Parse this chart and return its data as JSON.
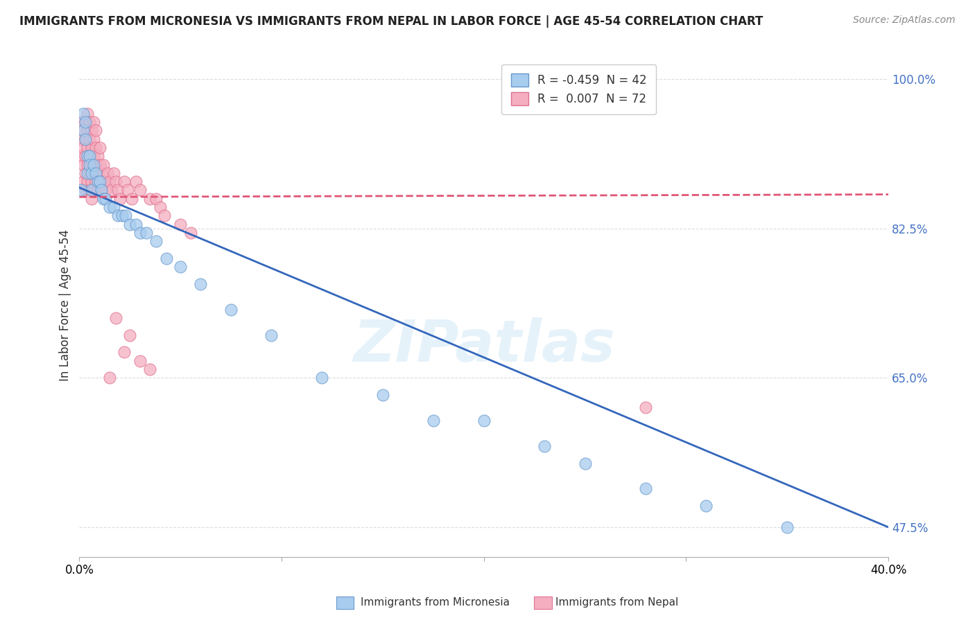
{
  "title": "IMMIGRANTS FROM MICRONESIA VS IMMIGRANTS FROM NEPAL IN LABOR FORCE | AGE 45-54 CORRELATION CHART",
  "source": "Source: ZipAtlas.com",
  "ylabel": "In Labor Force | Age 45-54",
  "xlim": [
    0.0,
    0.4
  ],
  "ylim": [
    0.44,
    1.03
  ],
  "micronesia_color": "#a8ccee",
  "nepal_color": "#f4aec0",
  "micronesia_edge": "#6699cc",
  "nepal_edge": "#e07090",
  "trend_micronesia_color": "#3366bb",
  "trend_nepal_color": "#e05575",
  "R_micronesia": -0.459,
  "N_micronesia": 42,
  "R_nepal": 0.007,
  "N_nepal": 72,
  "legend_label_micronesia": "Immigrants from Micronesia",
  "legend_label_nepal": "Immigrants from Nepal",
  "background_color": "#ffffff",
  "grid_color": "#cccccc",
  "watermark": "ZIPatlas",
  "micronesia_x": [
    0.001,
    0.002,
    0.002,
    0.003,
    0.003,
    0.004,
    0.004,
    0.005,
    0.005,
    0.006,
    0.006,
    0.007,
    0.008,
    0.009,
    0.01,
    0.011,
    0.012,
    0.013,
    0.015,
    0.017,
    0.019,
    0.021,
    0.023,
    0.025,
    0.028,
    0.03,
    0.033,
    0.038,
    0.043,
    0.05,
    0.06,
    0.075,
    0.095,
    0.12,
    0.15,
    0.175,
    0.2,
    0.23,
    0.25,
    0.28,
    0.31,
    0.35
  ],
  "micronesia_y": [
    0.87,
    0.96,
    0.94,
    0.95,
    0.93,
    0.91,
    0.89,
    0.91,
    0.9,
    0.89,
    0.87,
    0.9,
    0.89,
    0.88,
    0.88,
    0.87,
    0.86,
    0.86,
    0.85,
    0.85,
    0.84,
    0.84,
    0.84,
    0.83,
    0.83,
    0.82,
    0.82,
    0.81,
    0.79,
    0.78,
    0.76,
    0.73,
    0.7,
    0.65,
    0.63,
    0.6,
    0.6,
    0.57,
    0.55,
    0.52,
    0.5,
    0.475
  ],
  "nepal_x": [
    0.001,
    0.001,
    0.001,
    0.002,
    0.002,
    0.002,
    0.002,
    0.003,
    0.003,
    0.003,
    0.003,
    0.003,
    0.004,
    0.004,
    0.004,
    0.004,
    0.004,
    0.005,
    0.005,
    0.005,
    0.005,
    0.005,
    0.006,
    0.006,
    0.006,
    0.006,
    0.006,
    0.007,
    0.007,
    0.007,
    0.007,
    0.007,
    0.008,
    0.008,
    0.008,
    0.008,
    0.009,
    0.009,
    0.009,
    0.01,
    0.01,
    0.01,
    0.011,
    0.011,
    0.012,
    0.012,
    0.013,
    0.014,
    0.015,
    0.016,
    0.017,
    0.018,
    0.019,
    0.02,
    0.022,
    0.024,
    0.026,
    0.028,
    0.03,
    0.035,
    0.015,
    0.018,
    0.022,
    0.025,
    0.03,
    0.035,
    0.038,
    0.04,
    0.042,
    0.28,
    0.05,
    0.055
  ],
  "nepal_y": [
    0.91,
    0.93,
    0.95,
    0.88,
    0.9,
    0.92,
    0.94,
    0.87,
    0.89,
    0.91,
    0.93,
    0.95,
    0.88,
    0.9,
    0.92,
    0.94,
    0.96,
    0.87,
    0.89,
    0.91,
    0.93,
    0.95,
    0.88,
    0.9,
    0.92,
    0.94,
    0.86,
    0.89,
    0.91,
    0.93,
    0.95,
    0.87,
    0.88,
    0.9,
    0.92,
    0.94,
    0.87,
    0.89,
    0.91,
    0.88,
    0.9,
    0.92,
    0.87,
    0.89,
    0.88,
    0.9,
    0.87,
    0.89,
    0.88,
    0.87,
    0.89,
    0.88,
    0.87,
    0.86,
    0.88,
    0.87,
    0.86,
    0.88,
    0.87,
    0.86,
    0.65,
    0.72,
    0.68,
    0.7,
    0.67,
    0.66,
    0.86,
    0.85,
    0.84,
    0.615,
    0.83,
    0.82
  ],
  "micro_trend_x0": 0.0,
  "micro_trend_y0": 0.873,
  "micro_trend_x1": 0.4,
  "micro_trend_y1": 0.475,
  "nepal_trend_x0": 0.0,
  "nepal_trend_y0": 0.862,
  "nepal_trend_x1": 0.4,
  "nepal_trend_y1": 0.865
}
